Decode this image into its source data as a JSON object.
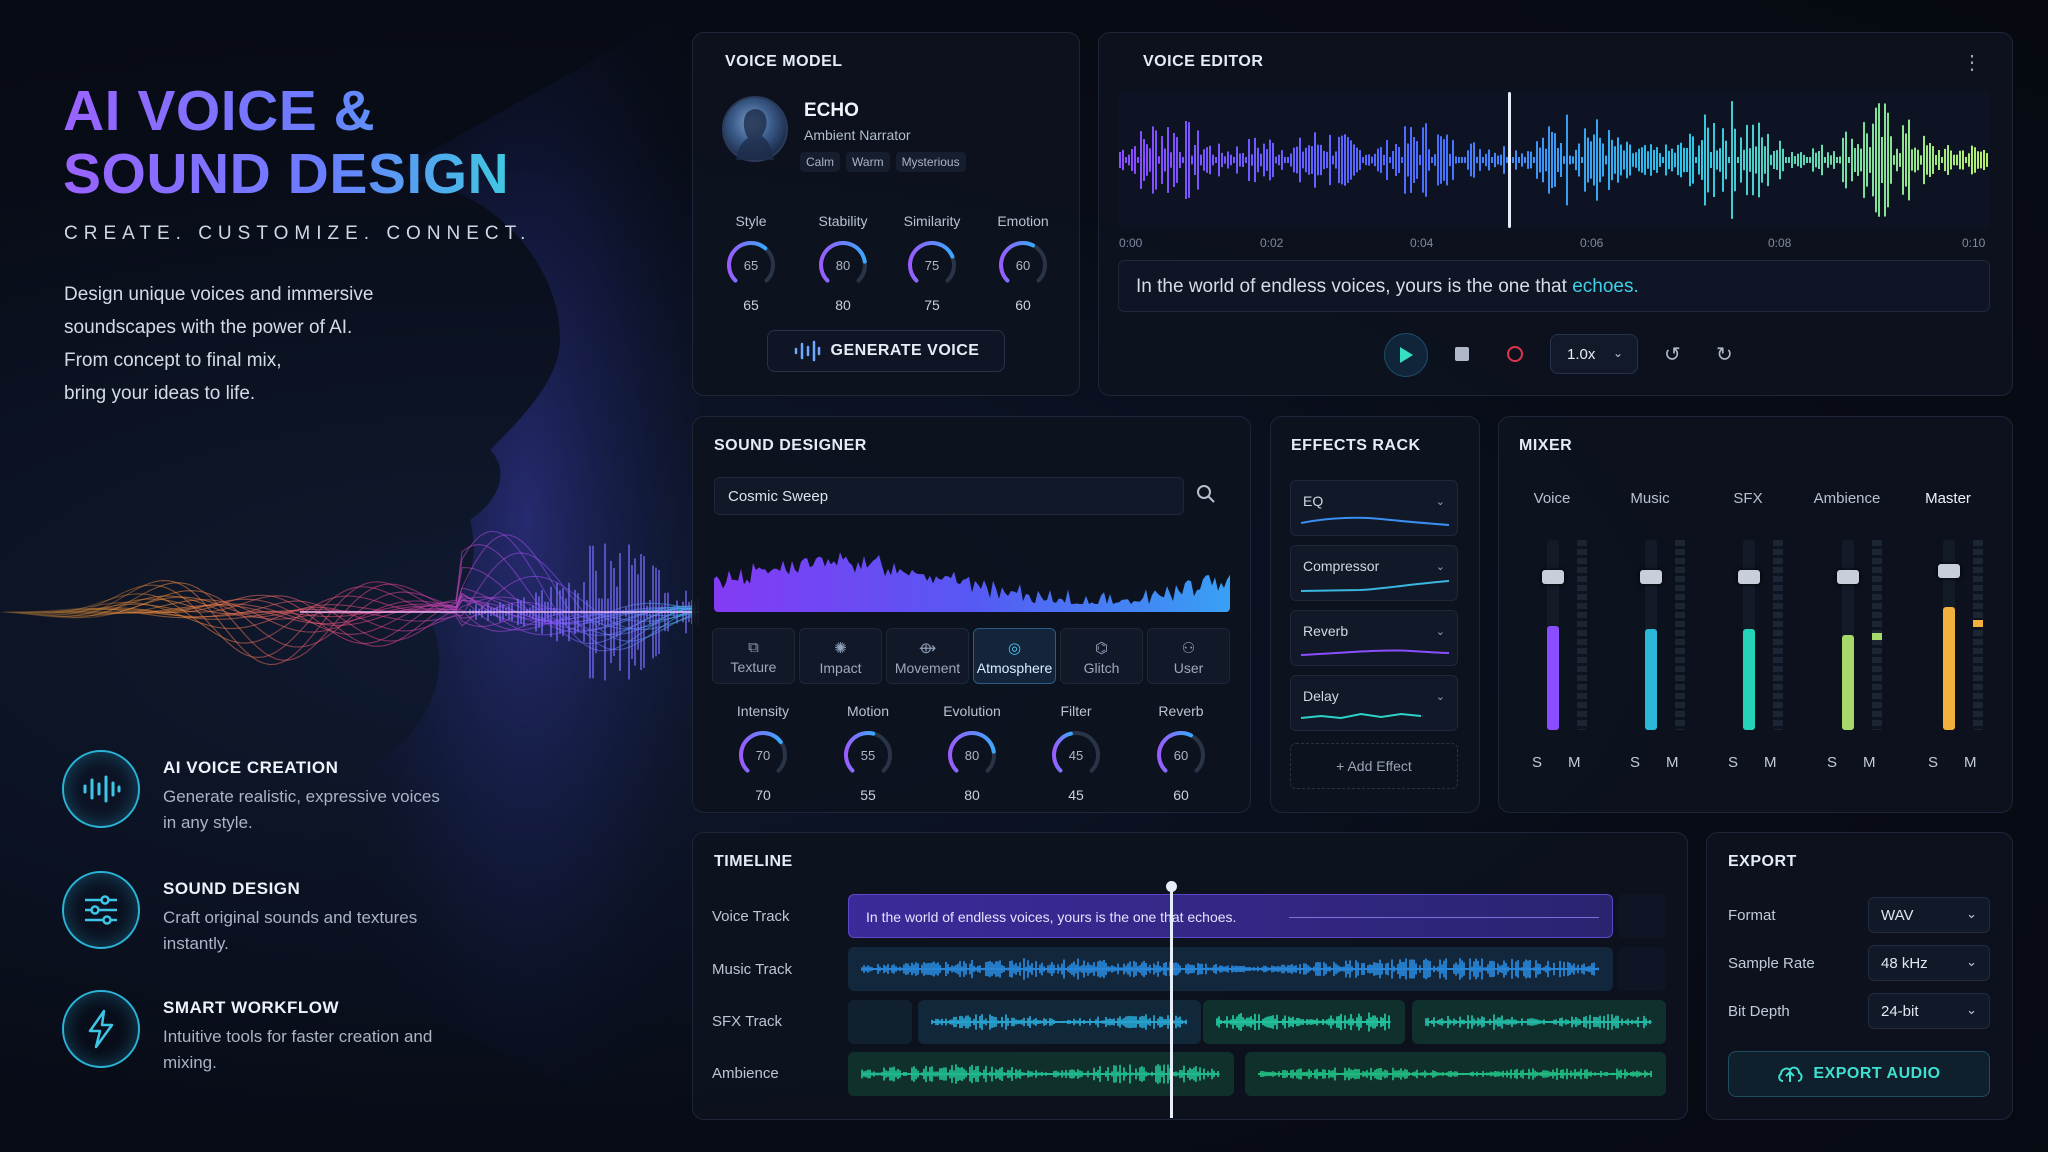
{
  "hero": {
    "title_line1": "AI VOICE &",
    "title_line2": "SOUND DESIGN",
    "tagline": "CREATE. CUSTOMIZE. CONNECT.",
    "desc": [
      "Design unique voices and immersive",
      "soundscapes with the power of AI.",
      "From concept to final mix,",
      "bring your ideas to life."
    ],
    "features": [
      {
        "icon": "waveform-icon",
        "title": "AI VOICE CREATION",
        "desc": "Generate realistic, expressive voices in any style."
      },
      {
        "icon": "sliders-icon",
        "title": "SOUND DESIGN",
        "desc": "Craft original sounds and textures instantly."
      },
      {
        "icon": "lightning-icon",
        "title": "SMART WORKFLOW",
        "desc": "Intuitive tools for faster creation and mixing."
      }
    ]
  },
  "voice_model": {
    "title": "VOICE MODEL",
    "name": "ECHO",
    "role": "Ambient Narrator",
    "tags": [
      "Calm",
      "Warm",
      "Mysterious"
    ],
    "knobs": [
      {
        "label": "Style",
        "value": 65
      },
      {
        "label": "Stability",
        "value": 80
      },
      {
        "label": "Similarity",
        "value": 75
      },
      {
        "label": "Emotion",
        "value": 60
      }
    ],
    "generate_label": "GENERATE VOICE"
  },
  "voice_editor": {
    "title": "VOICE EDITOR",
    "times": [
      "0:00",
      "0:02",
      "0:04",
      "0:06",
      "0:08",
      "0:10"
    ],
    "text_plain": "In the world of endless voices, yours is the one that ",
    "text_accent": "echoes.",
    "speed": "1.0x"
  },
  "sound_designer": {
    "title": "SOUND DESIGNER",
    "search_value": "Cosmic Sweep",
    "tabs": [
      {
        "label": "Texture",
        "active": false
      },
      {
        "label": "Impact",
        "active": false
      },
      {
        "label": "Movement",
        "active": false
      },
      {
        "label": "Atmosphere",
        "active": true
      },
      {
        "label": "Glitch",
        "active": false
      },
      {
        "label": "User",
        "active": false
      }
    ],
    "knobs": [
      {
        "label": "Intensity",
        "value": 70
      },
      {
        "label": "Motion",
        "value": 55
      },
      {
        "label": "Evolution",
        "value": 80
      },
      {
        "label": "Filter",
        "value": 45
      },
      {
        "label": "Reverb",
        "value": 60
      }
    ]
  },
  "effects_rack": {
    "title": "EFFECTS RACK",
    "effects": [
      "EQ",
      "Compressor",
      "Reverb",
      "Delay"
    ],
    "add_label": "+ Add Effect"
  },
  "mixer": {
    "title": "MIXER",
    "channels": [
      {
        "name": "Voice",
        "level": 0.55,
        "color": "#8a4dff"
      },
      {
        "name": "Music",
        "level": 0.53,
        "color": "#2ab7d8"
      },
      {
        "name": "SFX",
        "level": 0.53,
        "color": "#25d3b8"
      },
      {
        "name": "Ambience",
        "level": 0.5,
        "color": "#a6d86a"
      },
      {
        "name": "Master",
        "level": 0.65,
        "color": "#f1b13a"
      }
    ],
    "solo": "S",
    "mute": "M"
  },
  "timeline": {
    "title": "TIMELINE",
    "tracks": [
      "Voice Track",
      "Music Track",
      "SFX Track",
      "Ambience"
    ],
    "voice_clip_text": "In the world of endless voices, yours is the one that echoes."
  },
  "export": {
    "title": "EXPORT",
    "rows": [
      {
        "label": "Format",
        "value": "WAV"
      },
      {
        "label": "Sample Rate",
        "value": "48 kHz"
      },
      {
        "label": "Bit Depth",
        "value": "24-bit"
      }
    ],
    "button": "EXPORT AUDIO"
  }
}
